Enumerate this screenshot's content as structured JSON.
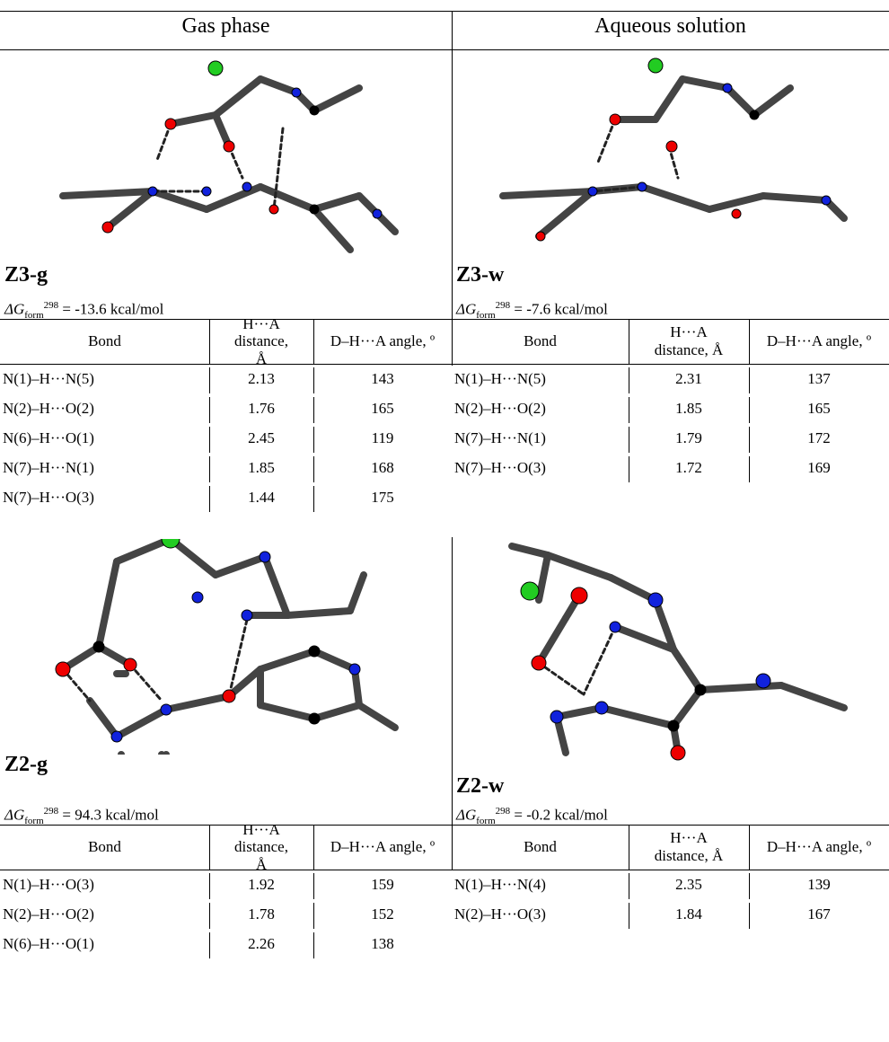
{
  "header": {
    "left": "Gas phase",
    "right": "Aqueous solution"
  },
  "panels": [
    {
      "label": "Z3-g",
      "dg": {
        "symbol": "ΔG",
        "sub": "form",
        "sup": "298",
        "rest": " = -13.6 kcal/mol"
      },
      "table": {
        "columns": [
          "Bond",
          "H···A distance, Å",
          "D–H···A angle, º"
        ],
        "rows": [
          [
            "N(1)–H···N(5)",
            "2.13",
            "143"
          ],
          [
            "N(2)–H···O(2)",
            "1.76",
            "165"
          ],
          [
            "N(6)–H···O(1)",
            "2.45",
            "119"
          ],
          [
            "N(7)–H···N(1)",
            "1.85",
            "168"
          ],
          [
            "N(7)–H···O(3)",
            "1.44",
            "175"
          ]
        ]
      }
    },
    {
      "label": "Z3-w",
      "dg": {
        "symbol": "ΔG",
        "sub": "form",
        "sup": "298",
        "rest": " = -7.6 kcal/mol"
      },
      "table": {
        "columns": [
          "Bond",
          "H···A distance, Å",
          "D–H···A angle, º"
        ],
        "rows": [
          [
            "N(1)–H···N(5)",
            "2.31",
            "137"
          ],
          [
            "N(2)–H···O(2)",
            "1.85",
            "165"
          ],
          [
            "N(7)–H···N(1)",
            "1.79",
            "172"
          ],
          [
            "N(7)–H···O(3)",
            "1.72",
            "169"
          ]
        ]
      }
    },
    {
      "label": "Z2-g",
      "dg": {
        "symbol": "ΔG",
        "sub": "form",
        "sup": "298",
        "rest": " = 94.3 kcal/mol"
      },
      "table": {
        "columns": [
          "Bond",
          "H···A distance, Å",
          "D–H···A angle, º"
        ],
        "rows": [
          [
            "N(1)–H···O(3)",
            "1.92",
            "159"
          ],
          [
            "N(2)–H···O(2)",
            "1.78",
            "152"
          ],
          [
            "N(6)–H···O(1)",
            "2.26",
            "138"
          ]
        ]
      }
    },
    {
      "label": "Z2-w",
      "dg": {
        "symbol": "ΔG",
        "sub": "form",
        "sup": "298",
        "rest": " = -0.2 kcal/mol"
      },
      "table": {
        "columns": [
          "Bond",
          "H···A distance, Å",
          "D–H···A angle, º"
        ],
        "rows": [
          [
            "N(1)–H···N(4)",
            "2.35",
            "139"
          ],
          [
            "N(2)–H···O(3)",
            "1.84",
            "167"
          ]
        ]
      }
    }
  ]
}
